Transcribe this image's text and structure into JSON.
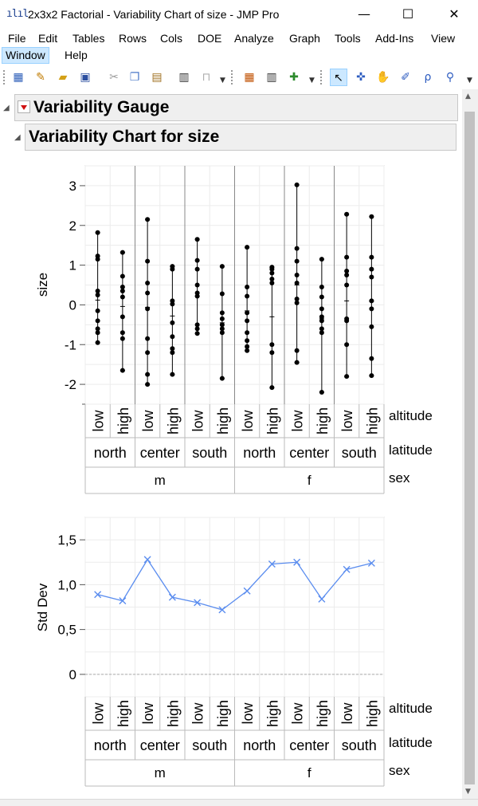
{
  "window": {
    "title": "2x3x2 Factorial - Variability Chart of size - JMP Pro",
    "icon_name": "jmp-app-icon",
    "controls": {
      "minimize": "—",
      "maximize": "☐",
      "close": "✕"
    }
  },
  "menu": {
    "items": [
      "File",
      "Edit",
      "Tables",
      "Rows",
      "Cols",
      "DOE",
      "Analyze",
      "Graph",
      "Tools",
      "Add-Ins",
      "View",
      "Window",
      "Help"
    ],
    "active": "Window"
  },
  "toolbar": {
    "icons": [
      "new-data-table-icon",
      "new-script-icon",
      "open-folder-icon",
      "save-icon",
      "cut-icon",
      "copy-icon",
      "paste-icon",
      "journal-icon",
      "lock-icon",
      "data-grid-icon",
      "column-info-icon",
      "add-graph-icon",
      "arrow-tool-icon",
      "crosshair-tool-icon",
      "hand-tool-icon",
      "brush-tool-icon",
      "lasso-tool-icon",
      "zoom-tool-icon"
    ],
    "selected_tool": "arrow-tool-icon"
  },
  "report": {
    "outer_title": "Variability Gauge",
    "inner_title": "Variability Chart for size"
  },
  "chart_data": [
    {
      "type": "scatter",
      "title": "",
      "ylabel": "size",
      "ylim": [
        -2.5,
        3.5
      ],
      "yticks": [
        "3",
        "2",
        "1",
        "0",
        "-1",
        "-2"
      ],
      "ytick_values": [
        3,
        2,
        1,
        0,
        -1,
        -2
      ],
      "x_levels": {
        "altitude": [
          "low",
          "high",
          "low",
          "high",
          "low",
          "high",
          "low",
          "high",
          "low",
          "high",
          "low",
          "high"
        ],
        "latitude": [
          "north",
          "center",
          "south",
          "north",
          "center",
          "south"
        ],
        "sex": [
          "m",
          "f"
        ]
      },
      "factor_labels": [
        "altitude",
        "latitude",
        "sex"
      ],
      "series": [
        {
          "group": "m/north/low",
          "points": [
            1.82,
            1.23,
            1.15,
            0.35,
            0.25,
            -0.15,
            -0.4,
            -0.6,
            -0.7,
            -0.95
          ]
        },
        {
          "group": "m/north/high",
          "points": [
            1.32,
            0.72,
            0.45,
            0.35,
            0.2,
            -0.3,
            -0.7,
            -0.85,
            -1.65
          ]
        },
        {
          "group": "m/center/low",
          "points": [
            2.15,
            1.1,
            0.55,
            0.3,
            -0.1,
            -0.85,
            -1.2,
            -1.75,
            -2.0
          ]
        },
        {
          "group": "m/center/high",
          "points": [
            0.97,
            0.9,
            0.1,
            0.02,
            -0.45,
            -0.8,
            -1.1,
            -1.2,
            -1.75
          ]
        },
        {
          "group": "m/south/low",
          "points": [
            1.65,
            1.12,
            0.9,
            0.5,
            0.3,
            0.22,
            -0.5,
            -0.6,
            -0.72
          ]
        },
        {
          "group": "m/south/high",
          "points": [
            0.97,
            0.28,
            -0.2,
            -0.35,
            -0.5,
            -0.6,
            -0.7,
            -1.85
          ]
        },
        {
          "group": "f/north/low",
          "points": [
            1.45,
            0.45,
            0.22,
            -0.2,
            -0.4,
            -0.7,
            -0.9,
            -1.05,
            -1.15
          ]
        },
        {
          "group": "f/north/high",
          "points": [
            0.95,
            0.9,
            0.8,
            0.65,
            0.55,
            -1.0,
            -1.2,
            -2.08
          ]
        },
        {
          "group": "f/center/low",
          "points": [
            3.02,
            1.42,
            1.1,
            0.75,
            0.55,
            0.15,
            0.05,
            -1.15,
            -1.45
          ]
        },
        {
          "group": "f/center/high",
          "points": [
            1.15,
            0.45,
            0.2,
            -0.1,
            -0.3,
            -0.4,
            -0.6,
            -0.7,
            -2.2
          ]
        },
        {
          "group": "f/south/low",
          "points": [
            2.28,
            1.2,
            0.85,
            0.75,
            0.5,
            -0.35,
            -0.4,
            -1.0,
            -1.8
          ]
        },
        {
          "group": "f/south/high",
          "points": [
            2.22,
            1.2,
            0.9,
            0.7,
            0.1,
            -0.1,
            -0.55,
            -1.35,
            -1.78
          ]
        }
      ],
      "means": [
        0.12,
        -0.04,
        -0.06,
        -0.28,
        0.22,
        -0.45,
        -0.15,
        -0.3,
        0.5,
        -0.35,
        0.1,
        0.09
      ]
    },
    {
      "type": "line",
      "ylabel": "Std Dev",
      "ylim": [
        -0.25,
        1.75
      ],
      "yticks": [
        "1,5",
        "1,0",
        "0,5",
        "0"
      ],
      "ytick_values": [
        1.5,
        1.0,
        0.5,
        0
      ],
      "factor_labels": [
        "altitude",
        "latitude",
        "sex"
      ],
      "x_levels": {
        "altitude": [
          "low",
          "high",
          "low",
          "high",
          "low",
          "high",
          "low",
          "high",
          "low",
          "high",
          "low",
          "high"
        ],
        "latitude": [
          "north",
          "center",
          "south",
          "north",
          "center",
          "south"
        ],
        "sex": [
          "m",
          "f"
        ]
      },
      "values": [
        0.89,
        0.82,
        1.28,
        0.86,
        0.8,
        0.72,
        0.93,
        1.23,
        1.25,
        0.84,
        1.17,
        1.24
      ],
      "line_color": "#5b8def"
    }
  ]
}
